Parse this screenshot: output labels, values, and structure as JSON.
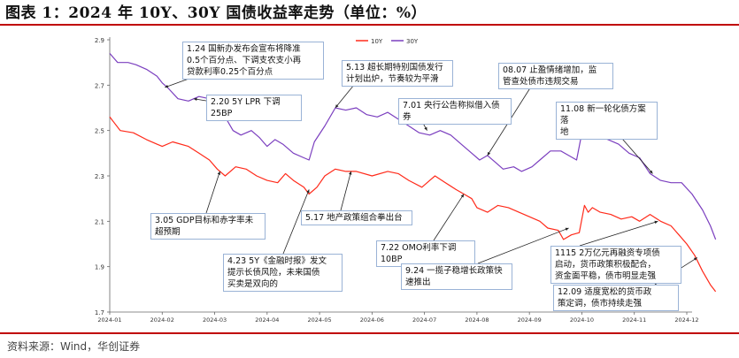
{
  "header": {
    "title": "图表 1：2024 年 10Y、30Y 国债收益率走势（单位：%）"
  },
  "footer": {
    "source": "资料来源：Wind，华创证券"
  },
  "colors": {
    "y10": "#ff2a1a",
    "y30": "#7b3fbf",
    "rule": "#c00000"
  },
  "chart_data": {
    "type": "line",
    "x_ticks": [
      "2024-01",
      "2024-02",
      "2024-03",
      "2024-04",
      "2024-05",
      "2024-06",
      "2024-07",
      "2024-08",
      "2024-09",
      "2024-10",
      "2024-11",
      "2024-12"
    ],
    "y_ticks": [
      "2.9",
      "2.7",
      "2.5",
      "2.3",
      "2.1",
      "1.9",
      "1.7"
    ],
    "ylim": [
      1.7,
      2.9
    ],
    "legend_position": "top-center",
    "series": [
      {
        "name": "10Y",
        "points": [
          [
            0,
            2.56
          ],
          [
            0.2,
            2.5
          ],
          [
            0.45,
            2.49
          ],
          [
            0.7,
            2.46
          ],
          [
            0.9,
            2.44
          ],
          [
            1.0,
            2.43
          ],
          [
            1.2,
            2.45
          ],
          [
            1.5,
            2.43
          ],
          [
            1.7,
            2.4
          ],
          [
            1.9,
            2.37
          ],
          [
            2.05,
            2.33
          ],
          [
            2.2,
            2.3
          ],
          [
            2.4,
            2.34
          ],
          [
            2.6,
            2.33
          ],
          [
            2.8,
            2.3
          ],
          [
            3.0,
            2.28
          ],
          [
            3.2,
            2.27
          ],
          [
            3.35,
            2.31
          ],
          [
            3.5,
            2.28
          ],
          [
            3.7,
            2.25
          ],
          [
            3.8,
            2.22
          ],
          [
            3.95,
            2.25
          ],
          [
            4.1,
            2.3
          ],
          [
            4.3,
            2.33
          ],
          [
            4.5,
            2.32
          ],
          [
            4.7,
            2.32
          ],
          [
            5.0,
            2.3
          ],
          [
            5.3,
            2.32
          ],
          [
            5.5,
            2.31
          ],
          [
            5.7,
            2.28
          ],
          [
            5.95,
            2.25
          ],
          [
            6.1,
            2.28
          ],
          [
            6.2,
            2.3
          ],
          [
            6.4,
            2.27
          ],
          [
            6.6,
            2.24
          ],
          [
            6.75,
            2.22
          ],
          [
            6.9,
            2.2
          ],
          [
            7.0,
            2.16
          ],
          [
            7.2,
            2.14
          ],
          [
            7.4,
            2.17
          ],
          [
            7.6,
            2.16
          ],
          [
            7.8,
            2.14
          ],
          [
            8.0,
            2.12
          ],
          [
            8.2,
            2.1
          ],
          [
            8.35,
            2.07
          ],
          [
            8.55,
            2.06
          ],
          [
            8.65,
            2.02
          ],
          [
            8.8,
            2.04
          ],
          [
            8.95,
            2.05
          ],
          [
            9.05,
            2.17
          ],
          [
            9.12,
            2.14
          ],
          [
            9.2,
            2.16
          ],
          [
            9.35,
            2.14
          ],
          [
            9.55,
            2.13
          ],
          [
            9.75,
            2.11
          ],
          [
            9.95,
            2.12
          ],
          [
            10.1,
            2.1
          ],
          [
            10.3,
            2.13
          ],
          [
            10.5,
            2.1
          ],
          [
            10.7,
            2.08
          ],
          [
            10.85,
            2.04
          ],
          [
            11.0,
            2.0
          ],
          [
            11.15,
            1.95
          ],
          [
            11.3,
            1.88
          ],
          [
            11.45,
            1.82
          ],
          [
            11.55,
            1.79
          ]
        ]
      },
      {
        "name": "30Y",
        "points": [
          [
            0,
            2.84
          ],
          [
            0.15,
            2.8
          ],
          [
            0.35,
            2.8
          ],
          [
            0.5,
            2.79
          ],
          [
            0.7,
            2.77
          ],
          [
            0.9,
            2.74
          ],
          [
            1.0,
            2.71
          ],
          [
            1.1,
            2.69
          ],
          [
            1.3,
            2.64
          ],
          [
            1.5,
            2.63
          ],
          [
            1.7,
            2.65
          ],
          [
            1.9,
            2.64
          ],
          [
            2.05,
            2.6
          ],
          [
            2.2,
            2.56
          ],
          [
            2.35,
            2.5
          ],
          [
            2.5,
            2.48
          ],
          [
            2.7,
            2.5
          ],
          [
            2.85,
            2.47
          ],
          [
            3.0,
            2.43
          ],
          [
            3.15,
            2.46
          ],
          [
            3.3,
            2.44
          ],
          [
            3.5,
            2.4
          ],
          [
            3.7,
            2.38
          ],
          [
            3.8,
            2.37
          ],
          [
            3.9,
            2.45
          ],
          [
            4.1,
            2.52
          ],
          [
            4.3,
            2.6
          ],
          [
            4.5,
            2.59
          ],
          [
            4.7,
            2.6
          ],
          [
            4.9,
            2.57
          ],
          [
            5.1,
            2.56
          ],
          [
            5.3,
            2.58
          ],
          [
            5.5,
            2.55
          ],
          [
            5.7,
            2.52
          ],
          [
            5.9,
            2.49
          ],
          [
            6.1,
            2.48
          ],
          [
            6.3,
            2.5
          ],
          [
            6.5,
            2.48
          ],
          [
            6.7,
            2.44
          ],
          [
            6.9,
            2.4
          ],
          [
            7.05,
            2.37
          ],
          [
            7.2,
            2.39
          ],
          [
            7.35,
            2.36
          ],
          [
            7.5,
            2.33
          ],
          [
            7.7,
            2.34
          ],
          [
            7.85,
            2.32
          ],
          [
            8.05,
            2.34
          ],
          [
            8.2,
            2.37
          ],
          [
            8.4,
            2.41
          ],
          [
            8.6,
            2.41
          ],
          [
            8.75,
            2.39
          ],
          [
            8.9,
            2.37
          ],
          [
            9.0,
            2.49
          ],
          [
            9.1,
            2.56
          ],
          [
            9.15,
            2.5
          ],
          [
            9.3,
            2.48
          ],
          [
            9.5,
            2.46
          ],
          [
            9.7,
            2.44
          ],
          [
            9.9,
            2.4
          ],
          [
            10.1,
            2.38
          ],
          [
            10.3,
            2.31
          ],
          [
            10.5,
            2.28
          ],
          [
            10.7,
            2.27
          ],
          [
            10.9,
            2.27
          ],
          [
            11.1,
            2.22
          ],
          [
            11.3,
            2.15
          ],
          [
            11.45,
            2.08
          ],
          [
            11.55,
            2.02
          ]
        ]
      }
    ],
    "annotations": [
      {
        "id": "a1",
        "text": [
          "1.24 国新办发布会宣布将降准",
          "0.5个百分点、下调支农支小再",
          "贷款利率0.25个百分点"
        ],
        "target": [
          1.05,
          2.69
        ]
      },
      {
        "id": "a2",
        "text": [
          "2.20 5Y LPR 下调25BP"
        ],
        "target": [
          1.6,
          2.64
        ]
      },
      {
        "id": "a3",
        "text": [
          "3.05  GDP目标和赤字率未",
          "超预期"
        ],
        "target": [
          2.1,
          2.32
        ]
      },
      {
        "id": "a4",
        "text": [
          "4.23 5Y《金融时报》发文",
          "提示长债风险，未来国债",
          "买卖是双向的"
        ],
        "target": [
          3.8,
          2.24
        ]
      },
      {
        "id": "a5",
        "text": [
          "5.13 超长期特别国债发行",
          "计划出炉，节奏较为平滑"
        ],
        "target": [
          4.3,
          2.6
        ]
      },
      {
        "id": "a6",
        "text": [
          "5.17 地产政策组合拳出台"
        ],
        "target": [
          4.6,
          2.32
        ]
      },
      {
        "id": "a7",
        "text": [
          "7.01 央行公告称拟借入债券"
        ],
        "target": [
          6.05,
          2.5
        ]
      },
      {
        "id": "a8",
        "text": [
          "7.22 OMO利率下调10BP"
        ],
        "target": [
          6.75,
          2.22
        ]
      },
      {
        "id": "a9",
        "text": [
          "08.07  止盈情绪增加，监",
          "管查处债市违规交易"
        ],
        "target": [
          7.2,
          2.39
        ]
      },
      {
        "id": "a10",
        "text": [
          "9.24 一揽子稳增长政策快",
          "速推出"
        ],
        "target": [
          8.75,
          2.07
        ]
      },
      {
        "id": "a11",
        "text": [
          "11.08  新一轮化债方案落",
          "地"
        ],
        "target": [
          10.35,
          2.31
        ]
      },
      {
        "id": "a12",
        "text": [
          "1115 2万亿元再融资专项债",
          "启动，货币政策积极配合，",
          "资金面平稳，债市明显走强"
        ],
        "target": [
          10.45,
          2.1
        ]
      },
      {
        "id": "a13",
        "text": [
          "12.09  适度宽松的货币政",
          "策定调，债市持续走强"
        ],
        "target": [
          11.2,
          1.94
        ]
      }
    ]
  }
}
